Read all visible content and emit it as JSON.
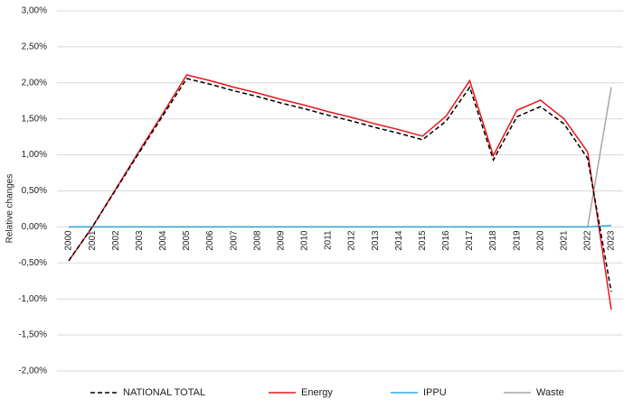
{
  "chart_data": {
    "type": "line",
    "y_label": "Relative changes",
    "categories": [
      "2000",
      "2001",
      "2002",
      "2003",
      "2004",
      "2005",
      "2006",
      "2007",
      "2008",
      "2009",
      "2010",
      "2011",
      "2012",
      "2013",
      "2014",
      "2015",
      "2016",
      "2017",
      "2018",
      "2019",
      "2020",
      "2021",
      "2022",
      "2023"
    ],
    "series": [
      {
        "name": "NATIONAL TOTAL",
        "color": "#000000",
        "dash": true,
        "values": [
          -0.47,
          0.0,
          0.52,
          1.04,
          1.55,
          2.06,
          1.98,
          1.89,
          1.81,
          1.72,
          1.64,
          1.55,
          1.47,
          1.38,
          1.3,
          1.21,
          1.47,
          1.94,
          0.93,
          1.53,
          1.67,
          1.43,
          0.95,
          -0.9
        ]
      },
      {
        "name": "Energy",
        "color": "#e8151b",
        "dash": false,
        "values": [
          -0.47,
          0.0,
          0.53,
          1.06,
          1.58,
          2.11,
          2.03,
          1.94,
          1.86,
          1.77,
          1.69,
          1.6,
          1.52,
          1.43,
          1.35,
          1.26,
          1.54,
          2.03,
          0.99,
          1.62,
          1.76,
          1.5,
          1.04,
          -1.15
        ]
      },
      {
        "name": "IPPU",
        "color": "#2eaadc",
        "dash": false,
        "values": [
          0,
          0,
          0,
          0,
          0,
          0,
          0,
          0,
          0,
          0,
          0,
          0,
          0,
          0,
          0,
          0,
          0,
          0,
          0,
          0,
          0,
          0,
          0,
          0.02
        ]
      },
      {
        "name": "Waste",
        "color": "#a6a6a6",
        "dash": false,
        "values": [
          0,
          0,
          0,
          0,
          0,
          0,
          0,
          0,
          0,
          0,
          0,
          0,
          0,
          0,
          0,
          0,
          0,
          0,
          0,
          0,
          0,
          0,
          0,
          1.94
        ]
      }
    ],
    "ylim": [
      -2,
      3
    ],
    "yticks": [
      {
        "value": -2,
        "label": "-2,00%"
      },
      {
        "value": -1.5,
        "label": "-1,50%"
      },
      {
        "value": -1,
        "label": "-1,00%"
      },
      {
        "value": -0.5,
        "label": "-0,50%"
      },
      {
        "value": 0,
        "label": "0,00%"
      },
      {
        "value": 0.5,
        "label": "0,50%"
      },
      {
        "value": 1,
        "label": "1,00%"
      },
      {
        "value": 1.5,
        "label": "1,50%"
      },
      {
        "value": 2,
        "label": "2,00%"
      },
      {
        "value": 2.5,
        "label": "2,50%"
      },
      {
        "value": 3,
        "label": "3,00%"
      }
    ],
    "grid": true,
    "legend": "bottom"
  }
}
